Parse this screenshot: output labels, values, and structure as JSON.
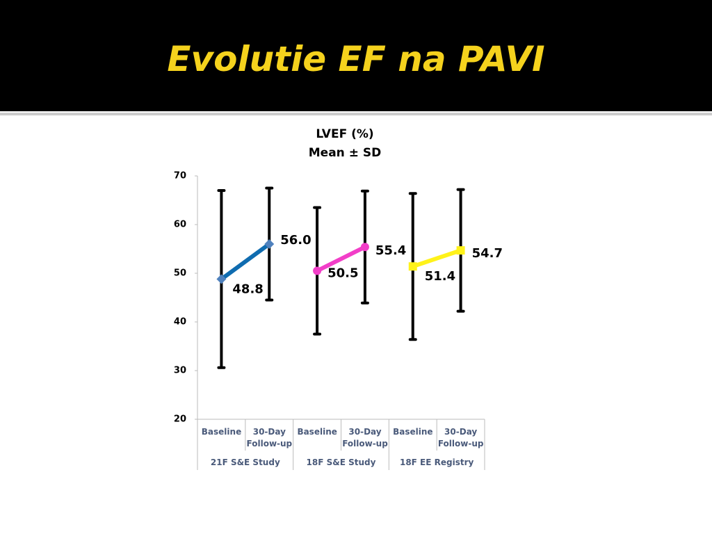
{
  "slide_title": "Evolutie EF na PAVI",
  "chart_data": {
    "type": "line-errorbar",
    "title": "LVEF (%)",
    "subtitle": "Mean ± SD",
    "categories": [
      "Baseline",
      "30-Day Follow-up",
      "Baseline",
      "30-Day Follow-up",
      "Baseline",
      "30-Day Follow-up"
    ],
    "groups": [
      "21F S&E Study",
      "18F S&E Study",
      "18F EE Registry"
    ],
    "series": [
      {
        "color": "#0f6cb0",
        "marker": "diamond",
        "values": [
          48.8,
          56.0,
          null,
          null,
          null,
          null
        ],
        "value_labels": [
          "48.8",
          "56.0",
          null,
          null,
          null,
          null
        ],
        "errors": [
          18.2,
          11.5,
          null,
          null,
          null,
          null
        ]
      },
      {
        "color": "#f23ec8",
        "marker": "circle",
        "values": [
          null,
          null,
          50.5,
          55.4,
          null,
          null
        ],
        "value_labels": [
          null,
          null,
          "50.5",
          "55.4",
          null,
          null
        ],
        "errors": [
          null,
          null,
          13,
          11.5,
          null,
          null
        ]
      },
      {
        "color": "#fff21a",
        "marker": "square",
        "values": [
          null,
          null,
          null,
          null,
          51.4,
          54.7
        ],
        "value_labels": [
          null,
          null,
          null,
          null,
          "51.4",
          "54.7"
        ],
        "errors": [
          null,
          null,
          null,
          null,
          15,
          12.5
        ]
      }
    ],
    "ylim": [
      20,
      70
    ],
    "yticks": [
      20,
      30,
      40,
      50,
      60,
      70
    ],
    "grid": false
  }
}
